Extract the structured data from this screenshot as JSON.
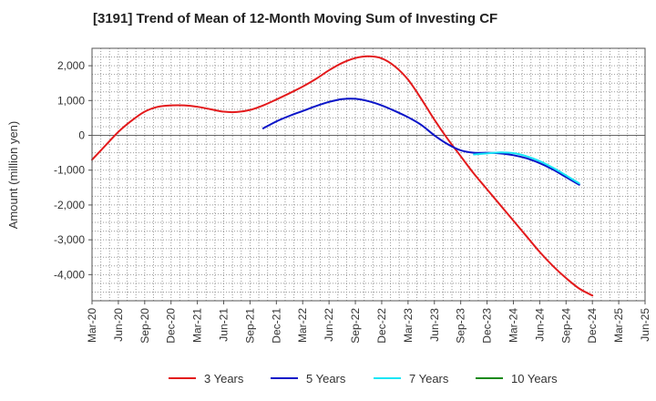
{
  "chart_data": {
    "type": "line",
    "title": "[3191]  Trend of Mean of 12-Month Moving Sum of Investing CF",
    "xlabel": "",
    "ylabel": "Amount (million yen)",
    "ylim": [
      -4750,
      2500
    ],
    "yticks": [
      2000,
      1000,
      0,
      -1000,
      -2000,
      -3000,
      -4000
    ],
    "ytick_labels": [
      "2,000",
      "1,000",
      "0",
      "-1,000",
      "-2,000",
      "-3,000",
      "-4,000"
    ],
    "xticks": [
      "Mar-20",
      "Jun-20",
      "Sep-20",
      "Dec-20",
      "Mar-21",
      "Jun-21",
      "Sep-21",
      "Dec-21",
      "Mar-22",
      "Jun-22",
      "Sep-22",
      "Dec-22",
      "Mar-23",
      "Jun-23",
      "Sep-23",
      "Dec-23",
      "Mar-24",
      "Jun-24",
      "Sep-24",
      "Dec-24",
      "Mar-25",
      "Jun-25"
    ],
    "grid": true,
    "legend_position": "bottom",
    "series": [
      {
        "name": "3 Years",
        "color": "#e31a1c",
        "points": [
          [
            0,
            -700
          ],
          [
            0.5,
            -300
          ],
          [
            1,
            100
          ],
          [
            1.5,
            420
          ],
          [
            2,
            680
          ],
          [
            2.5,
            820
          ],
          [
            3,
            860
          ],
          [
            3.5,
            860
          ],
          [
            4,
            820
          ],
          [
            4.5,
            750
          ],
          [
            5,
            680
          ],
          [
            5.5,
            670
          ],
          [
            6,
            730
          ],
          [
            6.5,
            860
          ],
          [
            7,
            1030
          ],
          [
            7.5,
            1210
          ],
          [
            8,
            1400
          ],
          [
            8.5,
            1620
          ],
          [
            9,
            1870
          ],
          [
            9.5,
            2080
          ],
          [
            10,
            2220
          ],
          [
            10.5,
            2270
          ],
          [
            11,
            2210
          ],
          [
            11.5,
            1980
          ],
          [
            12,
            1600
          ],
          [
            12.5,
            1050
          ],
          [
            13,
            450
          ],
          [
            13.5,
            -100
          ],
          [
            14,
            -600
          ],
          [
            14.5,
            -1100
          ],
          [
            15,
            -1550
          ],
          [
            15.5,
            -2000
          ],
          [
            16,
            -2450
          ],
          [
            16.5,
            -2900
          ],
          [
            17,
            -3350
          ],
          [
            17.5,
            -3750
          ],
          [
            18,
            -4100
          ],
          [
            18.5,
            -4400
          ],
          [
            19,
            -4600
          ]
        ]
      },
      {
        "name": "5 Years",
        "color": "#0a14c8",
        "points": [
          [
            6.5,
            200
          ],
          [
            7,
            400
          ],
          [
            7.5,
            560
          ],
          [
            8,
            700
          ],
          [
            8.5,
            840
          ],
          [
            9,
            960
          ],
          [
            9.5,
            1040
          ],
          [
            10,
            1050
          ],
          [
            10.5,
            980
          ],
          [
            11,
            860
          ],
          [
            11.5,
            700
          ],
          [
            12,
            520
          ],
          [
            12.5,
            300
          ],
          [
            13,
            0
          ],
          [
            13.5,
            -250
          ],
          [
            14,
            -430
          ],
          [
            14.5,
            -500
          ],
          [
            15,
            -500
          ],
          [
            15.5,
            -520
          ],
          [
            16,
            -570
          ],
          [
            16.5,
            -660
          ],
          [
            17,
            -800
          ],
          [
            17.5,
            -980
          ],
          [
            18,
            -1200
          ],
          [
            18.5,
            -1420
          ]
        ]
      },
      {
        "name": "7 Years",
        "color": "#19e6f5",
        "points": [
          [
            14.5,
            -550
          ],
          [
            15,
            -520
          ],
          [
            15.5,
            -490
          ],
          [
            16,
            -510
          ],
          [
            16.5,
            -600
          ],
          [
            17,
            -740
          ],
          [
            17.5,
            -930
          ],
          [
            18,
            -1150
          ],
          [
            18.5,
            -1380
          ]
        ]
      },
      {
        "name": "10 Years",
        "color": "#1a8a1a",
        "points": []
      }
    ]
  }
}
